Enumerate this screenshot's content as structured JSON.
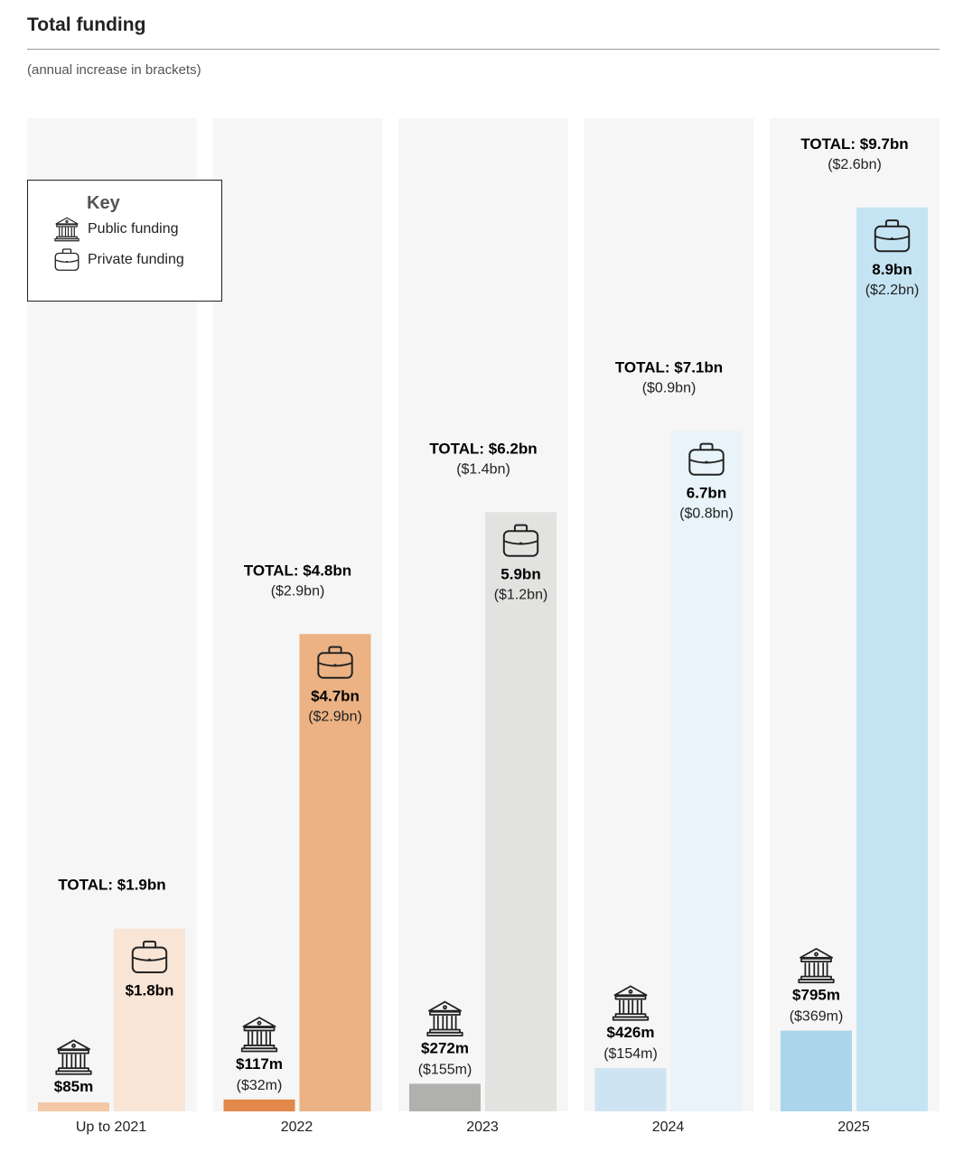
{
  "header": {
    "title": "Total funding",
    "subtitle": "(annual increase in brackets)"
  },
  "key": {
    "title": "Key",
    "public_label": "Public funding",
    "public_icon": "bank-icon",
    "private_label": "Private funding",
    "private_icon": "briefcase-icon"
  },
  "chart_data": {
    "type": "bar",
    "title": "Total funding",
    "subtitle": "(annual increase in brackets)",
    "categories": [
      "Up to 2021",
      "2022",
      "2023",
      "2024",
      "2025"
    ],
    "unit": "USD billions",
    "ylim": [
      0,
      9.7
    ],
    "grid": false,
    "legend_position": "top-left",
    "series": [
      {
        "name": "Public funding",
        "values": [
          0.085,
          0.117,
          0.272,
          0.426,
          0.795
        ],
        "labels": [
          "$85m",
          "$117m",
          "$272m",
          "$426m",
          "$795m"
        ],
        "increase_labels": [
          "",
          "($32m)",
          "($155m)",
          "($154m)",
          "($369m)"
        ]
      },
      {
        "name": "Private funding",
        "values": [
          1.8,
          4.7,
          5.9,
          6.7,
          8.9
        ],
        "labels": [
          "$1.8bn",
          "$4.7bn",
          "5.9bn",
          "6.7bn",
          "8.9bn"
        ],
        "increase_labels": [
          "",
          "($2.9bn)",
          "($1.2bn)",
          "($0.8bn)",
          "($2.2bn)"
        ]
      }
    ],
    "totals": {
      "values": [
        1.9,
        4.8,
        6.2,
        7.1,
        9.7
      ],
      "labels": [
        "TOTAL: $1.9bn",
        "TOTAL: $4.8bn",
        "TOTAL: $6.2bn",
        "TOTAL: $7.1bn",
        "TOTAL: $9.7bn"
      ],
      "increase_labels": [
        "",
        "($2.9bn)",
        "($1.4bn)",
        "($0.9bn)",
        "($2.6bn)"
      ]
    },
    "colors": {
      "panel_background": "#f6f6f6",
      "public": [
        "#f3c9a8",
        "#e2884a",
        "#b0b0ae",
        "#cfe4f2",
        "#acd5ec"
      ],
      "private": [
        "#f8e5d6",
        "#ecb283",
        "#e2e2e0",
        "#e8f4f9",
        "#c5e4f3"
      ]
    }
  }
}
